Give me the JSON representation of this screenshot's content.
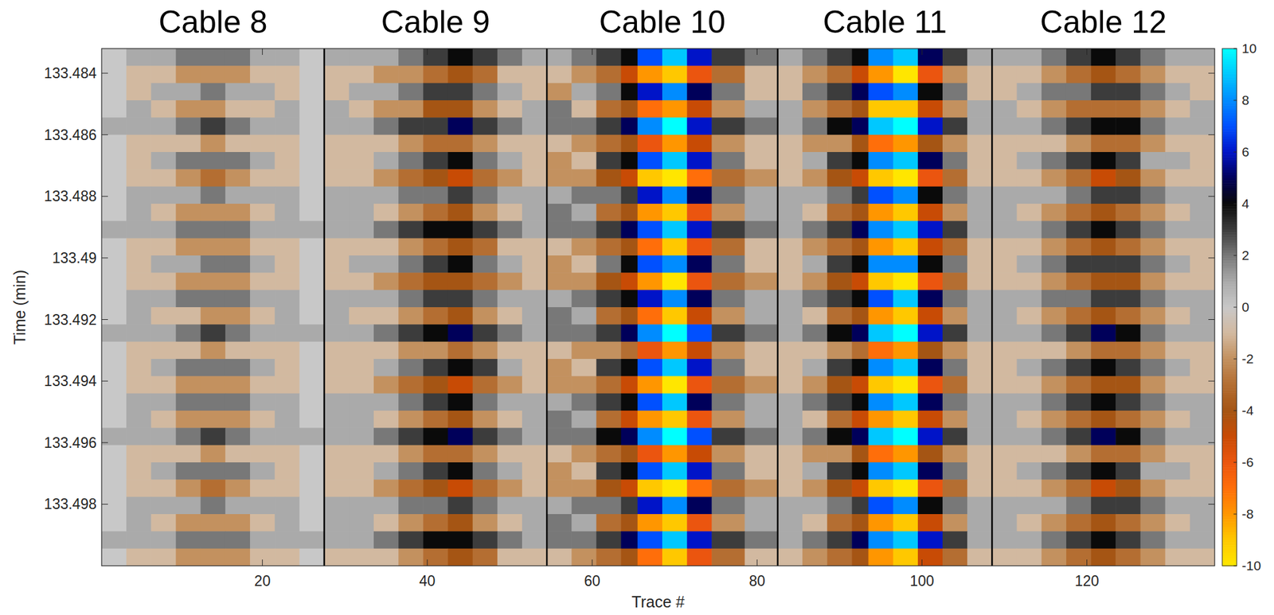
{
  "chart_data": {
    "type": "heatmap",
    "x_label": "Trace #",
    "y_label": "Time (min)",
    "xlim": [
      0.5,
      135.5
    ],
    "xticks": [
      20,
      40,
      60,
      80,
      100,
      120
    ],
    "ylim": [
      133.4832,
      133.5
    ],
    "yticks": [
      133.484,
      133.486,
      133.488,
      133.49,
      133.492,
      133.494,
      133.496,
      133.498
    ],
    "color_range": [
      -10,
      10
    ],
    "colorbar_ticks": [
      -10,
      -8,
      -6,
      -4,
      -2,
      0,
      2,
      4,
      6,
      8,
      10
    ],
    "panels": [
      {
        "title": "Cable 8",
        "xlim": [
          0.5,
          27.5
        ]
      },
      {
        "title": "Cable 9",
        "xlim": [
          27.5,
          54.5
        ]
      },
      {
        "title": "Cable 10",
        "xlim": [
          54.5,
          82.5
        ]
      },
      {
        "title": "Cable 11",
        "xlim": [
          82.5,
          108.5
        ]
      },
      {
        "title": "Cable 12",
        "xlim": [
          108.5,
          135.5
        ]
      }
    ],
    "x_edges": [
      0.5,
      3.5,
      6.5,
      9.5,
      12.5,
      15.5,
      18.5,
      21.5,
      24.5,
      27.5,
      30.5,
      33.5,
      36.5,
      39.5,
      42.5,
      45.5,
      48.5,
      51.5,
      54.5,
      57.5,
      60.5,
      63.5,
      65.5,
      68.5,
      71.5,
      74.5,
      78.5,
      82.5,
      85.5,
      88.5,
      91.5,
      93.5,
      96.5,
      99.5,
      102.5,
      105.5,
      108.5,
      111.5,
      114.5,
      117.5,
      120.5,
      123.5,
      126.5,
      129.5,
      132.5,
      135.5
    ],
    "y_edges": [
      133.4832,
      133.48376,
      133.48432,
      133.48488,
      133.48544,
      133.486,
      133.48656,
      133.48712,
      133.48768,
      133.48824,
      133.4888,
      133.48936,
      133.48992,
      133.49048,
      133.49104,
      133.4916,
      133.49216,
      133.49272,
      133.49328,
      133.49384,
      133.4944,
      133.49496,
      133.49552,
      133.49608,
      133.49664,
      133.4972,
      133.49776,
      133.49832,
      133.49888,
      133.49944,
      133.5
    ],
    "cells": [
      [
        0,
        1,
        1,
        2,
        2,
        2,
        1,
        1,
        0,
        1,
        1,
        1,
        2,
        3,
        4,
        3,
        2,
        1,
        1,
        2,
        3,
        4,
        7,
        9,
        6,
        3,
        2,
        1,
        2,
        3,
        4,
        8,
        9,
        5,
        3,
        1,
        1,
        1,
        2,
        3,
        4,
        3,
        2,
        1,
        1
      ],
      [
        0,
        -1,
        -1,
        -2,
        -2,
        -2,
        -1,
        -1,
        0,
        -1,
        -1,
        -2,
        -2,
        -3,
        -4,
        -3,
        -1,
        -1,
        -1,
        -2,
        -3,
        -5,
        -8,
        -9,
        -6,
        -3,
        -1,
        -1,
        -2,
        -3,
        -5,
        -8,
        -10,
        -6,
        -2,
        -1,
        -1,
        -1,
        -2,
        -3,
        -4,
        -3,
        -2,
        -1,
        -1
      ],
      [
        0,
        -1,
        1,
        1,
        2,
        1,
        1,
        -1,
        0,
        -1,
        1,
        1,
        2,
        3,
        3,
        2,
        1,
        -1,
        -2,
        1,
        2,
        4,
        6,
        8,
        5,
        2,
        -1,
        -1,
        2,
        3,
        5,
        7,
        8,
        4,
        2,
        -1,
        -1,
        1,
        2,
        2,
        3,
        3,
        2,
        1,
        -1
      ],
      [
        0,
        1,
        -1,
        -2,
        -2,
        -1,
        -1,
        1,
        0,
        1,
        -1,
        -2,
        -2,
        -4,
        -4,
        -2,
        -1,
        1,
        2,
        -1,
        -3,
        -4,
        -7,
        -8,
        -5,
        -2,
        1,
        1,
        -2,
        -3,
        -4,
        -9,
        -9,
        -5,
        -2,
        1,
        1,
        -1,
        -2,
        -3,
        -3,
        -3,
        -2,
        -1,
        1
      ],
      [
        1,
        1,
        1,
        2,
        3,
        2,
        1,
        1,
        0,
        1,
        1,
        2,
        3,
        3,
        5,
        3,
        2,
        1,
        2,
        2,
        3,
        5,
        8,
        10,
        6,
        3,
        2,
        1,
        2,
        4,
        5,
        9,
        10,
        6,
        3,
        1,
        1,
        1,
        2,
        3,
        4,
        4,
        2,
        1,
        1
      ],
      [
        0,
        -1,
        -1,
        -1,
        -2,
        -1,
        -1,
        -1,
        0,
        -1,
        -1,
        -1,
        -2,
        -3,
        -3,
        -2,
        -1,
        -1,
        -1,
        -2,
        -3,
        -4,
        -6,
        -8,
        -5,
        -2,
        -1,
        -1,
        -2,
        -2,
        -4,
        -7,
        -8,
        -4,
        -2,
        -1,
        -1,
        -1,
        -1,
        -2,
        -3,
        -3,
        -2,
        -1,
        -1
      ],
      [
        0,
        -1,
        1,
        2,
        2,
        2,
        1,
        -1,
        0,
        -1,
        -1,
        1,
        2,
        3,
        4,
        2,
        1,
        -1,
        -2,
        -1,
        3,
        4,
        7,
        9,
        6,
        2,
        -1,
        -1,
        1,
        3,
        4,
        8,
        9,
        5,
        2,
        -1,
        -1,
        1,
        2,
        3,
        4,
        3,
        1,
        1,
        -1
      ],
      [
        0,
        -1,
        -1,
        -2,
        -3,
        -2,
        -1,
        -1,
        0,
        -1,
        -1,
        -2,
        -3,
        -4,
        -5,
        -3,
        -2,
        -1,
        -2,
        -2,
        -4,
        -5,
        -9,
        -10,
        -7,
        -3,
        -2,
        -1,
        -2,
        -4,
        -5,
        -9,
        -10,
        -6,
        -3,
        -1,
        -1,
        -1,
        -2,
        -3,
        -5,
        -4,
        -2,
        -1,
        -1
      ],
      [
        0,
        1,
        1,
        1,
        2,
        1,
        1,
        1,
        0,
        1,
        1,
        1,
        2,
        2,
        3,
        2,
        1,
        1,
        1,
        2,
        2,
        3,
        6,
        8,
        5,
        2,
        1,
        1,
        1,
        2,
        3,
        7,
        8,
        4,
        2,
        1,
        1,
        1,
        1,
        2,
        3,
        3,
        2,
        1,
        1
      ],
      [
        0,
        1,
        -1,
        -2,
        -2,
        -2,
        -1,
        1,
        0,
        1,
        1,
        -1,
        -2,
        -3,
        -4,
        -2,
        -1,
        1,
        2,
        1,
        -3,
        -4,
        -8,
        -9,
        -6,
        -2,
        1,
        1,
        -1,
        -3,
        -4,
        -8,
        -9,
        -5,
        -2,
        1,
        1,
        -1,
        -2,
        -3,
        -4,
        -3,
        -2,
        -1,
        1
      ],
      [
        1,
        1,
        1,
        2,
        2,
        2,
        1,
        1,
        1,
        1,
        1,
        2,
        3,
        4,
        4,
        3,
        2,
        1,
        2,
        2,
        3,
        5,
        7,
        9,
        6,
        3,
        2,
        1,
        2,
        3,
        5,
        8,
        9,
        6,
        3,
        1,
        1,
        1,
        2,
        3,
        4,
        3,
        2,
        1,
        1
      ],
      [
        0,
        -1,
        -1,
        -2,
        -2,
        -2,
        -1,
        -1,
        0,
        -1,
        -1,
        -1,
        -2,
        -3,
        -4,
        -3,
        -1,
        -1,
        -1,
        -2,
        -3,
        -4,
        -7,
        -9,
        -6,
        -3,
        -1,
        -1,
        -2,
        -3,
        -4,
        -8,
        -9,
        -5,
        -3,
        -1,
        -1,
        -1,
        -2,
        -3,
        -4,
        -3,
        -2,
        -1,
        -1
      ],
      [
        0,
        -1,
        1,
        1,
        2,
        2,
        1,
        -1,
        0,
        -1,
        1,
        1,
        2,
        3,
        4,
        2,
        1,
        -1,
        -2,
        -1,
        2,
        4,
        7,
        8,
        5,
        2,
        -1,
        -1,
        1,
        3,
        4,
        8,
        8,
        4,
        2,
        -1,
        -1,
        1,
        2,
        3,
        3,
        3,
        2,
        1,
        -1
      ],
      [
        0,
        -1,
        -1,
        -2,
        -2,
        -2,
        -1,
        -1,
        0,
        -1,
        -1,
        -2,
        -3,
        -4,
        -4,
        -3,
        -2,
        -1,
        -2,
        -2,
        -4,
        -5,
        -8,
        -10,
        -6,
        -3,
        -2,
        -1,
        -2,
        -4,
        -5,
        -9,
        -10,
        -6,
        -3,
        -1,
        -1,
        -1,
        -2,
        -3,
        -4,
        -4,
        -2,
        -1,
        -1
      ],
      [
        0,
        1,
        1,
        2,
        2,
        2,
        1,
        1,
        0,
        1,
        1,
        1,
        2,
        3,
        3,
        2,
        1,
        1,
        1,
        2,
        3,
        4,
        6,
        8,
        5,
        2,
        1,
        1,
        2,
        3,
        4,
        7,
        9,
        5,
        2,
        1,
        1,
        1,
        2,
        2,
        3,
        3,
        2,
        1,
        1
      ],
      [
        0,
        1,
        -1,
        -1,
        -2,
        -2,
        -1,
        1,
        0,
        1,
        -1,
        -1,
        -2,
        -3,
        -4,
        -2,
        -1,
        1,
        2,
        1,
        -3,
        -4,
        -7,
        -9,
        -5,
        -2,
        1,
        1,
        -1,
        -3,
        -4,
        -8,
        -9,
        -5,
        -2,
        1,
        1,
        -1,
        -2,
        -3,
        -4,
        -3,
        -2,
        -1,
        1
      ],
      [
        1,
        1,
        1,
        2,
        3,
        2,
        1,
        1,
        1,
        1,
        1,
        2,
        3,
        4,
        5,
        3,
        2,
        1,
        2,
        2,
        3,
        5,
        8,
        10,
        7,
        3,
        2,
        1,
        2,
        4,
        5,
        9,
        10,
        6,
        3,
        1,
        1,
        1,
        2,
        3,
        5,
        4,
        2,
        1,
        1
      ],
      [
        0,
        -1,
        -1,
        -1,
        -2,
        -1,
        -1,
        -1,
        0,
        -1,
        -1,
        -1,
        -2,
        -2,
        -3,
        -2,
        -1,
        -1,
        -1,
        -2,
        -2,
        -3,
        -6,
        -8,
        -5,
        -2,
        -1,
        -1,
        -1,
        -2,
        -3,
        -7,
        -8,
        -4,
        -2,
        -1,
        -1,
        -1,
        -1,
        -2,
        -3,
        -3,
        -2,
        -1,
        -1
      ],
      [
        0,
        -1,
        1,
        2,
        2,
        2,
        1,
        -1,
        0,
        -1,
        -1,
        1,
        2,
        3,
        4,
        3,
        1,
        -1,
        -2,
        -1,
        3,
        4,
        7,
        9,
        6,
        2,
        -1,
        -1,
        1,
        3,
        4,
        8,
        9,
        5,
        2,
        -1,
        -1,
        1,
        2,
        3,
        4,
        3,
        2,
        1,
        -1
      ],
      [
        0,
        -1,
        -1,
        -2,
        -2,
        -2,
        -1,
        -1,
        0,
        -1,
        -1,
        -2,
        -3,
        -4,
        -5,
        -3,
        -2,
        -1,
        -2,
        -2,
        -3,
        -5,
        -8,
        -10,
        -6,
        -3,
        -2,
        -1,
        -2,
        -4,
        -5,
        -9,
        -10,
        -6,
        -3,
        -1,
        -1,
        -1,
        -2,
        -3,
        -4,
        -4,
        -2,
        -1,
        -1
      ],
      [
        0,
        1,
        1,
        2,
        2,
        2,
        1,
        1,
        0,
        1,
        1,
        1,
        2,
        3,
        4,
        2,
        1,
        1,
        1,
        2,
        3,
        4,
        7,
        9,
        5,
        2,
        1,
        1,
        2,
        3,
        4,
        8,
        9,
        5,
        2,
        1,
        1,
        1,
        2,
        3,
        4,
        3,
        2,
        1,
        1
      ],
      [
        0,
        1,
        -1,
        -2,
        -2,
        -2,
        -1,
        1,
        0,
        1,
        1,
        -1,
        -2,
        -3,
        -4,
        -2,
        -1,
        1,
        2,
        1,
        -3,
        -5,
        -8,
        -9,
        -6,
        -2,
        1,
        1,
        -1,
        -3,
        -5,
        -8,
        -9,
        -5,
        -2,
        1,
        1,
        -1,
        -2,
        -3,
        -4,
        -3,
        -2,
        -1,
        1
      ],
      [
        1,
        1,
        1,
        2,
        3,
        2,
        1,
        1,
        1,
        1,
        1,
        2,
        3,
        4,
        5,
        3,
        2,
        1,
        2,
        2,
        4,
        5,
        8,
        10,
        7,
        3,
        2,
        1,
        2,
        4,
        5,
        9,
        10,
        6,
        3,
        1,
        1,
        1,
        2,
        3,
        5,
        4,
        2,
        1,
        1
      ],
      [
        0,
        -1,
        -1,
        -1,
        -2,
        -1,
        -1,
        -1,
        0,
        -1,
        -1,
        -1,
        -2,
        -3,
        -3,
        -2,
        -1,
        -1,
        -1,
        -2,
        -3,
        -4,
        -6,
        -8,
        -5,
        -2,
        -1,
        -1,
        -2,
        -2,
        -4,
        -7,
        -8,
        -4,
        -2,
        -1,
        -1,
        -1,
        -1,
        -2,
        -3,
        -3,
        -2,
        -1,
        -1
      ],
      [
        0,
        -1,
        1,
        2,
        2,
        2,
        1,
        -1,
        0,
        -1,
        -1,
        1,
        2,
        3,
        4,
        2,
        1,
        -1,
        -2,
        -1,
        3,
        4,
        7,
        9,
        6,
        2,
        -1,
        -1,
        1,
        3,
        4,
        8,
        9,
        5,
        2,
        -1,
        -1,
        1,
        2,
        3,
        4,
        3,
        1,
        1,
        -1
      ],
      [
        0,
        -1,
        -1,
        -2,
        -3,
        -2,
        -1,
        -1,
        0,
        -1,
        -1,
        -2,
        -3,
        -4,
        -5,
        -3,
        -2,
        -1,
        -2,
        -2,
        -4,
        -5,
        -9,
        -10,
        -7,
        -3,
        -2,
        -1,
        -2,
        -4,
        -5,
        -9,
        -10,
        -6,
        -3,
        -1,
        -1,
        -1,
        -2,
        -3,
        -5,
        -4,
        -2,
        -1,
        -1
      ],
      [
        0,
        1,
        1,
        1,
        2,
        1,
        1,
        1,
        0,
        1,
        1,
        1,
        2,
        2,
        3,
        2,
        1,
        1,
        1,
        2,
        2,
        3,
        6,
        8,
        5,
        2,
        1,
        1,
        1,
        2,
        3,
        7,
        8,
        4,
        2,
        1,
        1,
        1,
        1,
        2,
        3,
        3,
        2,
        1,
        1
      ],
      [
        0,
        1,
        -1,
        -2,
        -2,
        -2,
        -1,
        1,
        0,
        1,
        1,
        -1,
        -2,
        -3,
        -4,
        -2,
        -1,
        1,
        2,
        1,
        -3,
        -4,
        -8,
        -9,
        -6,
        -2,
        1,
        1,
        -1,
        -3,
        -4,
        -8,
        -9,
        -5,
        -2,
        1,
        1,
        -1,
        -2,
        -3,
        -4,
        -3,
        -2,
        -1,
        1
      ],
      [
        1,
        1,
        1,
        2,
        2,
        2,
        1,
        1,
        1,
        1,
        1,
        2,
        3,
        4,
        4,
        3,
        2,
        1,
        2,
        2,
        3,
        5,
        7,
        9,
        6,
        3,
        2,
        1,
        2,
        3,
        5,
        8,
        9,
        6,
        3,
        1,
        1,
        1,
        2,
        3,
        4,
        3,
        2,
        1,
        1
      ],
      [
        0,
        -1,
        -1,
        -2,
        -2,
        -2,
        -1,
        -1,
        0,
        -1,
        -1,
        -1,
        -2,
        -3,
        -4,
        -3,
        -1,
        -1,
        -1,
        -2,
        -3,
        -4,
        -7,
        -9,
        -6,
        -3,
        -1,
        -1,
        -2,
        -3,
        -4,
        -8,
        -9,
        -5,
        -3,
        -1,
        -1,
        -1,
        -2,
        -3,
        -4,
        -3,
        -2,
        -1,
        -1
      ]
    ]
  }
}
